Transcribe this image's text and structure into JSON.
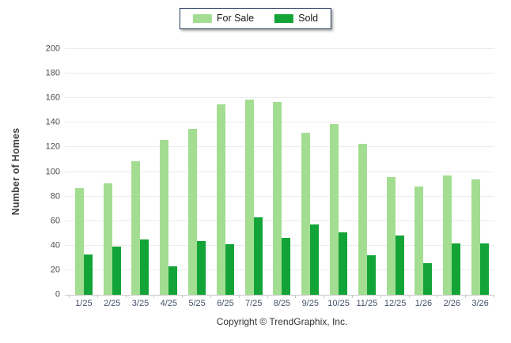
{
  "legend": {
    "items": [
      {
        "id": "for-sale",
        "label": "For Sale",
        "color": "#a3dd92"
      },
      {
        "id": "sold",
        "label": "Sold",
        "color": "#13a437"
      }
    ]
  },
  "footer": {
    "copyright": "Copyright © TrendGraphix, Inc."
  },
  "colors": {
    "for_sale": "#a3dd92",
    "sold": "#13a437",
    "legend_border": "#243a5e",
    "gridline": "#ececec",
    "axis_line": "#c9c9c9"
  },
  "chart_data": {
    "type": "bar",
    "title": "",
    "xlabel": "",
    "ylabel": "Number of Homes",
    "ylim": [
      0,
      200
    ],
    "ytick_step": 20,
    "grid": true,
    "legend_position": "top-center",
    "categories": [
      "1/25",
      "2/25",
      "3/25",
      "4/25",
      "5/25",
      "6/25",
      "7/25",
      "8/25",
      "9/25",
      "10/25",
      "11/25",
      "12/25",
      "1/26",
      "2/26",
      "3/26"
    ],
    "series": [
      {
        "name": "For Sale",
        "color": "#a3dd92",
        "values": [
          87,
          91,
          109,
          126,
          135,
          155,
          159,
          157,
          132,
          139,
          123,
          96,
          88,
          97,
          94
        ]
      },
      {
        "name": "Sold",
        "color": "#13a437",
        "values": [
          33,
          39,
          45,
          23,
          44,
          41,
          63,
          46,
          57,
          51,
          32,
          48,
          26,
          42,
          42
        ]
      }
    ]
  }
}
